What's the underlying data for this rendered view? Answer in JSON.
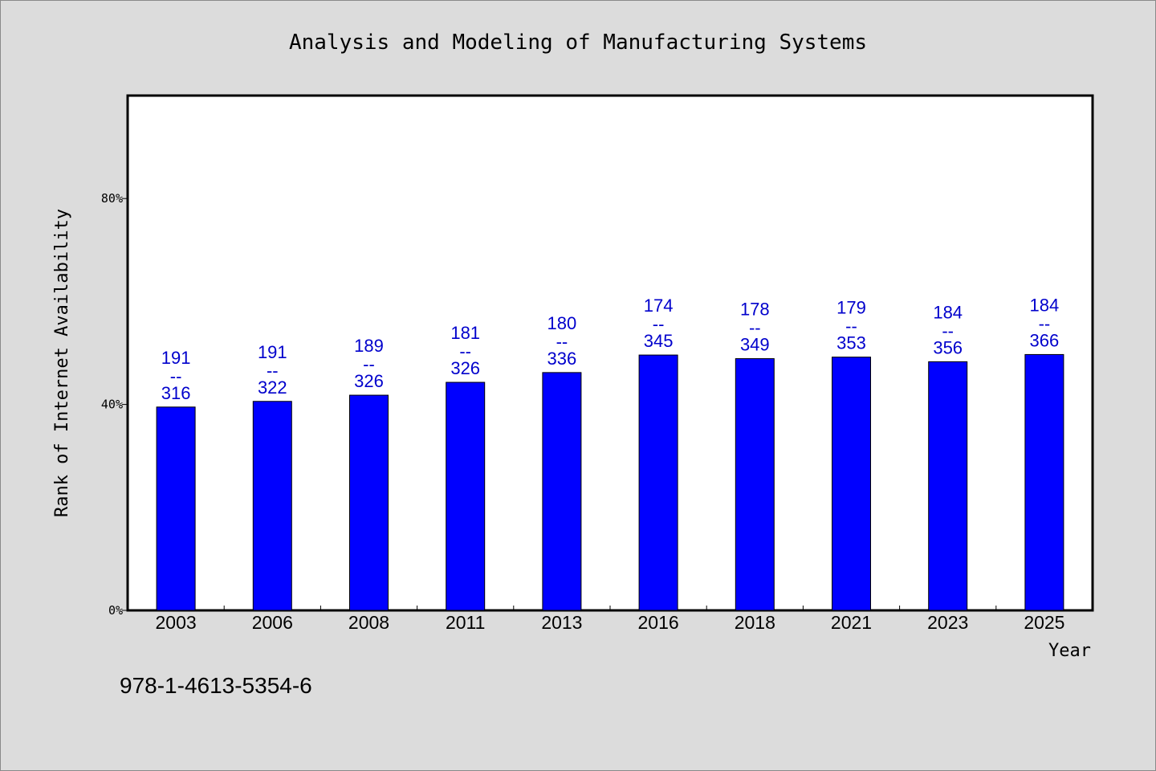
{
  "chart_data": {
    "type": "bar",
    "title": "Analysis and Modeling of Manufacturing Systems",
    "xlabel": "Year",
    "ylabel": "Rank of Internet Availability",
    "categories": [
      "2003",
      "2006",
      "2008",
      "2011",
      "2013",
      "2016",
      "2018",
      "2021",
      "2023",
      "2025"
    ],
    "values": [
      39.5,
      40.6,
      41.8,
      44.3,
      46.2,
      49.6,
      48.9,
      49.2,
      48.3,
      49.7
    ],
    "ylim": [
      0,
      100
    ],
    "yticks": [
      0,
      40,
      80
    ],
    "ytick_labels": [
      "0%",
      "40%",
      "80%"
    ],
    "grid": false,
    "legend": "none",
    "data_labels": [
      {
        "top": "191",
        "sep": "--",
        "bottom": "316"
      },
      {
        "top": "191",
        "sep": "--",
        "bottom": "322"
      },
      {
        "top": "189",
        "sep": "--",
        "bottom": "326"
      },
      {
        "top": "181",
        "sep": "--",
        "bottom": "326"
      },
      {
        "top": "180",
        "sep": "--",
        "bottom": "336"
      },
      {
        "top": "174",
        "sep": "--",
        "bottom": "345"
      },
      {
        "top": "178",
        "sep": "--",
        "bottom": "349"
      },
      {
        "top": "179",
        "sep": "--",
        "bottom": "353"
      },
      {
        "top": "184",
        "sep": "--",
        "bottom": "356"
      },
      {
        "top": "184",
        "sep": "--",
        "bottom": "366"
      }
    ],
    "bar_color": "#0000ff",
    "label_color": "#0000cc"
  },
  "footnote": "978-1-4613-5354-6"
}
